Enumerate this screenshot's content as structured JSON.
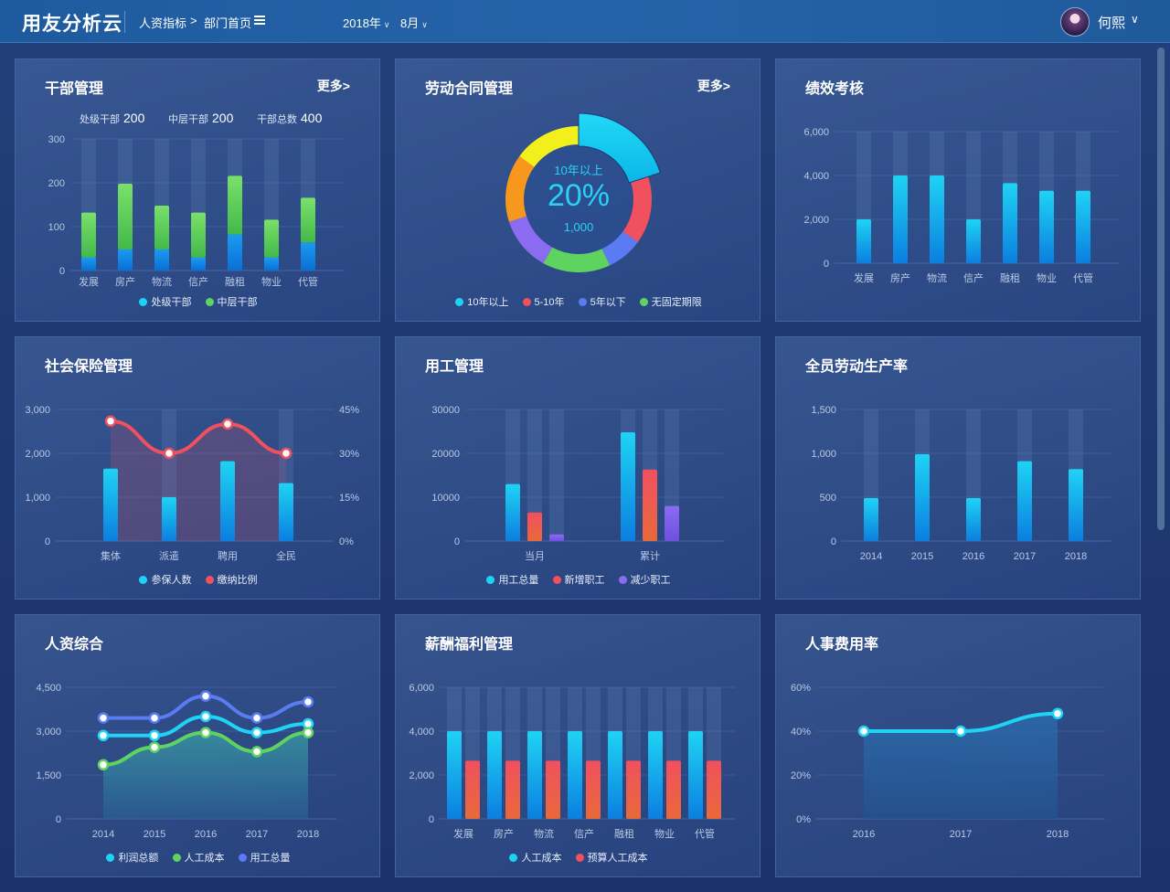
{
  "header": {
    "brand": "用友分析云",
    "crumb_root": "人资指标",
    "crumb_sep": ">",
    "crumb_current": "部门首页",
    "year": "2018年",
    "month": "8月",
    "username": "何熙"
  },
  "colors": {
    "cyan": "#1fd3f4",
    "blue_bar": "#0b84e3",
    "green": "#5fd35f",
    "red": "#f1505e",
    "purple": "#8b6cf0",
    "blue": "#5a7bf2",
    "yellow": "#f2ef1c",
    "orange": "#f7981c"
  },
  "cards": {
    "cadre": {
      "title": "干部管理",
      "more": "更多>",
      "stat1_label": "处级干部",
      "stat1_value": "200",
      "stat2_label": "中层干部",
      "stat2_value": "200",
      "stat3_label": "干部总数",
      "stat3_value": "400"
    },
    "contract": {
      "title": "劳动合同管理",
      "more": "更多>",
      "center_label": "10年以上",
      "center_percent": "20%",
      "center_value": "1,000"
    },
    "perf": {
      "title": "绩效考核"
    },
    "social": {
      "title": "社会保险管理"
    },
    "employ": {
      "title": "用工管理"
    },
    "productivity": {
      "title": "全员劳动生产率"
    },
    "hr": {
      "title": "人资综合"
    },
    "salary": {
      "title": "薪酬福利管理"
    },
    "costrate": {
      "title": "人事费用率"
    }
  },
  "chart_data": [
    {
      "id": "cadre",
      "type": "bar",
      "stacked": true,
      "categories": [
        "发展",
        "房产",
        "物流",
        "信产",
        "融租",
        "物业",
        "代管"
      ],
      "series": [
        {
          "name": "处级干部",
          "values": [
            30,
            48,
            48,
            30,
            82,
            30,
            64
          ]
        },
        {
          "name": "中层干部",
          "values": [
            102,
            150,
            100,
            102,
            134,
            86,
            102
          ]
        }
      ],
      "yticks": [
        "0",
        "100",
        "200",
        "300"
      ],
      "ylim": [
        0,
        300
      ]
    },
    {
      "id": "contract",
      "type": "pie",
      "donut": true,
      "series": [
        {
          "name": "10年以上",
          "value": 20
        },
        {
          "name": "5-10年",
          "value": 15
        },
        {
          "name": "5年以下",
          "value": 8
        },
        {
          "name": "无固定期限",
          "value": 15
        }
      ],
      "unlabeled_slices": [
        {
          "value": 12
        },
        {
          "value": 15
        },
        {
          "value": 15
        }
      ]
    },
    {
      "id": "perf",
      "type": "bar",
      "categories": [
        "发展",
        "房产",
        "物流",
        "信产",
        "融租",
        "物业",
        "代管"
      ],
      "values": [
        2000,
        4000,
        4000,
        2000,
        3650,
        3300,
        3300
      ],
      "yticks": [
        "0",
        "2,000",
        "4,000",
        "6,000"
      ],
      "ylim": [
        0,
        6000
      ]
    },
    {
      "id": "social",
      "type": "bar+line",
      "categories": [
        "集体",
        "派遣",
        "聘用",
        "全民"
      ],
      "series": [
        {
          "name": "参保人数",
          "axis": "left",
          "values": [
            1650,
            1000,
            1820,
            1320
          ]
        },
        {
          "name": "缴纳比例",
          "axis": "right",
          "values": [
            41,
            30,
            40,
            30
          ]
        }
      ],
      "yticks_left": [
        "0",
        "1,000",
        "2,000",
        "3,000"
      ],
      "ylim_left": [
        0,
        3000
      ],
      "yticks_right": [
        "0%",
        "15%",
        "30%",
        "45%"
      ],
      "ylim_right": [
        0,
        45
      ]
    },
    {
      "id": "employ",
      "type": "bar",
      "categories": [
        "当月",
        "累计"
      ],
      "series": [
        {
          "name": "用工总量",
          "values": [
            13000,
            24800
          ]
        },
        {
          "name": "新增职工",
          "values": [
            6500,
            16300
          ]
        },
        {
          "name": "减少职工",
          "values": [
            1500,
            8000
          ]
        }
      ],
      "yticks": [
        "0",
        "10000",
        "20000",
        "30000"
      ],
      "ylim": [
        0,
        30000
      ]
    },
    {
      "id": "productivity",
      "type": "bar",
      "categories": [
        "2014",
        "2015",
        "2016",
        "2017",
        "2018"
      ],
      "values": [
        490,
        990,
        490,
        910,
        820
      ],
      "yticks": [
        "0",
        "500",
        "1,000",
        "1,500"
      ],
      "ylim": [
        0,
        1500
      ]
    },
    {
      "id": "hr",
      "type": "area",
      "categories": [
        "2014",
        "2015",
        "2016",
        "2017",
        "2018"
      ],
      "series": [
        {
          "name": "利润总额",
          "values": [
            2850,
            2850,
            3500,
            2950,
            3250
          ]
        },
        {
          "name": "人工成本",
          "values": [
            1850,
            2450,
            2950,
            2300,
            2950
          ]
        },
        {
          "name": "用工总量",
          "values": [
            3450,
            3450,
            4200,
            3450,
            4000
          ]
        }
      ],
      "yticks": [
        "0",
        "1,500",
        "3,000",
        "4,500"
      ],
      "ylim": [
        0,
        4500
      ]
    },
    {
      "id": "salary",
      "type": "bar",
      "categories": [
        "发展",
        "房产",
        "物流",
        "信产",
        "融租",
        "物业",
        "代管"
      ],
      "series": [
        {
          "name": "人工成本",
          "values": [
            4000,
            4000,
            4000,
            4000,
            4000,
            4000,
            4000
          ]
        },
        {
          "name": "预算人工成本",
          "values": [
            2650,
            2650,
            2650,
            2650,
            2650,
            2650,
            2650
          ]
        }
      ],
      "yticks": [
        "0",
        "2,000",
        "4,000",
        "6,000"
      ],
      "ylim": [
        0,
        6000
      ]
    },
    {
      "id": "costrate",
      "type": "area",
      "categories": [
        "2016",
        "2017",
        "2018"
      ],
      "values": [
        40,
        40,
        48
      ],
      "yticks": [
        "0%",
        "20%",
        "40%",
        "60%"
      ],
      "ylim": [
        0,
        60
      ]
    }
  ]
}
